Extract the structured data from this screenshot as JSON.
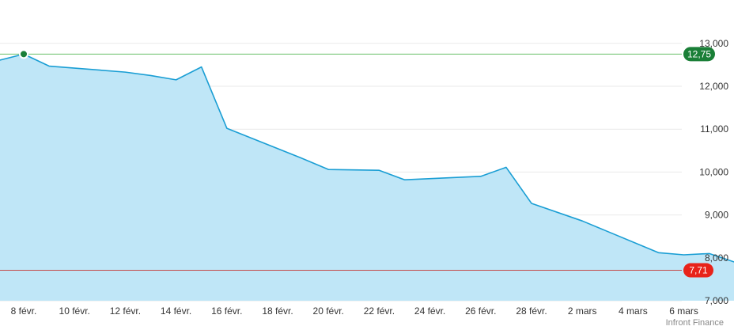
{
  "chart_data": {
    "type": "area",
    "x_unit": "date",
    "x": [
      "2024-02-07",
      "2024-02-08",
      "2024-02-09",
      "2024-02-12",
      "2024-02-13",
      "2024-02-14",
      "2024-02-15",
      "2024-02-16",
      "2024-02-19",
      "2024-02-20",
      "2024-02-21",
      "2024-02-22",
      "2024-02-23",
      "2024-02-26",
      "2024-02-27",
      "2024-02-28",
      "2024-03-01",
      "2024-03-04",
      "2024-03-05",
      "2024-03-06",
      "2024-03-07",
      "2024-03-08"
    ],
    "series": [
      {
        "values": [
          12.6,
          12.75,
          12.47,
          12.33,
          12.25,
          12.15,
          12.45,
          11.02,
          10.31,
          10.06,
          10.05,
          10.04,
          9.82,
          9.9,
          10.11,
          9.27,
          8.86,
          8.12,
          8.07,
          8.1,
          7.9,
          7.71
        ]
      }
    ],
    "x_tick_labels": [
      "8 févr.",
      "10 févr.",
      "12 févr.",
      "14 févr.",
      "16 févr.",
      "18 févr.",
      "20 févr.",
      "22 févr.",
      "24 févr.",
      "26 févr.",
      "28 févr.",
      "2 mars",
      "4 mars",
      "6 mars"
    ],
    "y_ticks": [
      "13,000",
      "12,000",
      "11,000",
      "10,000",
      "9,000",
      "8,000",
      "7,000"
    ],
    "y_tick_values": [
      13,
      12,
      11,
      10,
      9,
      8,
      7
    ],
    "ylim": [
      7,
      13.5
    ],
    "y_axis_side": "right",
    "grid": true,
    "high": {
      "value": 12.75,
      "label": "12,75",
      "color": "#1a7f37",
      "line_color": "#6abf69"
    },
    "low": {
      "value": 7.71,
      "label": "7,71",
      "color": "#e8231a",
      "line_color": "#c44a4a"
    },
    "area_color": "#bfe6f7",
    "line_color": "#1a9ed4",
    "credit": "Infront Finance"
  }
}
